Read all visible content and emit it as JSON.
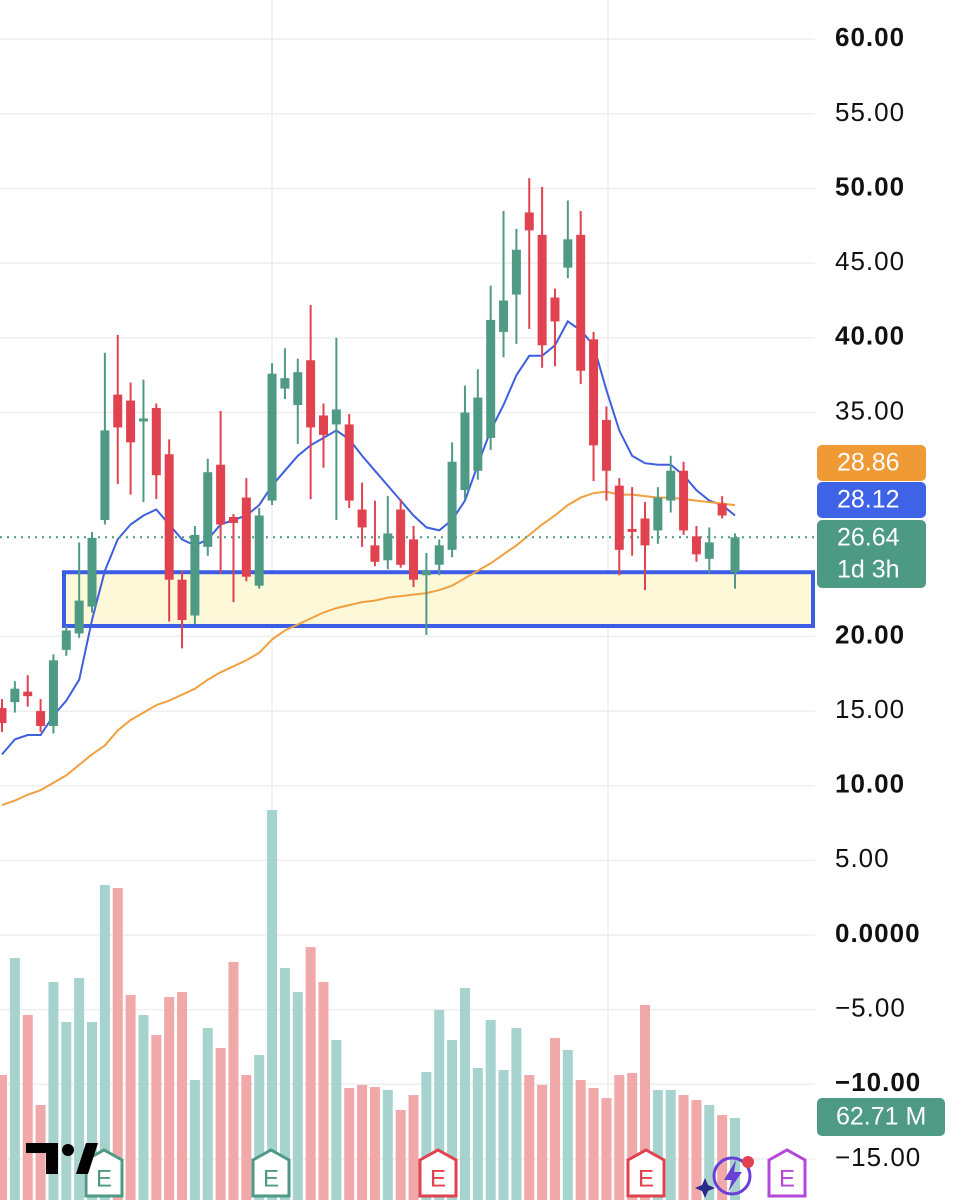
{
  "chart_data": {
    "type": "candlestick",
    "open": [
      15.2,
      15.6,
      16.3,
      15.0,
      14.0,
      19.1,
      20.2,
      22.0,
      27.8,
      36.2,
      35.8,
      34.4,
      35.3,
      32.2,
      23.8,
      21.4,
      26.0,
      31.5,
      28.0,
      29.3,
      23.4,
      29.1,
      36.6,
      35.5,
      38.5,
      34.8,
      34.2,
      34.2,
      28.5,
      26.1,
      25.1,
      28.5,
      26.5,
      24.1,
      24.8,
      25.8,
      29.8,
      31.1,
      33.3,
      40.4,
      42.9,
      48.4,
      46.9,
      42.7,
      44.7,
      46.9,
      39.9,
      34.5,
      30.1,
      27.2,
      27.9,
      27.1,
      29.1,
      31.1,
      26.7,
      25.2,
      28.9,
      24.3
    ],
    "high": [
      15.8,
      17.0,
      17.4,
      15.8,
      18.8,
      20.7,
      26.3,
      27.0,
      39.0,
      40.2,
      37.0,
      37.2,
      35.6,
      33.2,
      24.4,
      27.4,
      31.9,
      35.1,
      28.2,
      30.6,
      28.6,
      38.3,
      39.3,
      38.6,
      42.2,
      35.6,
      40.0,
      34.9,
      30.3,
      29.1,
      29.4,
      29.2,
      27.4,
      25.6,
      26.5,
      33.0,
      36.8,
      37.9,
      43.5,
      48.5,
      47.3,
      50.7,
      50.1,
      43.3,
      49.2,
      48.5,
      40.4,
      35.4,
      30.6,
      30.0,
      29.0,
      30.0,
      32.1,
      31.7,
      27.4,
      27.3,
      29.4,
      26.9
    ],
    "low": [
      13.6,
      14.9,
      15.3,
      13.6,
      13.5,
      18.7,
      19.9,
      21.6,
      27.5,
      30.2,
      29.5,
      29.0,
      29.2,
      21.0,
      19.2,
      20.8,
      25.4,
      24.2,
      22.3,
      23.7,
      23.2,
      28.8,
      35.9,
      32.9,
      29.2,
      31.3,
      27.8,
      28.6,
      26.0,
      24.7,
      24.5,
      24.6,
      23.3,
      20.1,
      24.1,
      25.3,
      29.2,
      30.5,
      32.5,
      38.7,
      39.6,
      40.6,
      38.0,
      38.1,
      44.0,
      36.9,
      30.4,
      29.1,
      24.1,
      25.4,
      23.1,
      26.2,
      28.3,
      26.8,
      25.0,
      24.2,
      27.9,
      23.2
    ],
    "close": [
      14.2,
      16.5,
      16.0,
      14.0,
      18.4,
      20.4,
      22.4,
      26.6,
      33.8,
      34.0,
      33.0,
      34.6,
      30.8,
      23.8,
      21.1,
      26.8,
      31.0,
      27.5,
      27.6,
      24.0,
      28.1,
      37.6,
      37.3,
      37.7,
      34.0,
      33.5,
      35.2,
      29.1,
      27.3,
      25.0,
      26.9,
      24.8,
      23.8,
      24.4,
      26.1,
      31.7,
      35.0,
      36.0,
      41.2,
      42.5,
      45.9,
      47.2,
      39.5,
      41.1,
      46.6,
      37.8,
      32.8,
      31.1,
      25.8,
      27.0,
      26.1,
      29.3,
      31.1,
      27.1,
      25.5,
      26.3,
      28.1,
      26.64
    ],
    "up_color": "#4e9a85",
    "down_color": "#e0424f",
    "series": [
      {
        "color": "#3d5fe0",
        "values": [
          12.1,
          13.1,
          13.4,
          13.4,
          14.7,
          15.7,
          17.1,
          21.1,
          24.4,
          26.5,
          27.5,
          28.1,
          28.5,
          27.5,
          26.5,
          26.1,
          26.5,
          27.5,
          27.8,
          28.1,
          28.8,
          30.1,
          31.1,
          32.1,
          32.8,
          33.3,
          33.8,
          33.2,
          32.1,
          31.1,
          30.1,
          29.1,
          28.1,
          27.3,
          27.1,
          27.8,
          29.1,
          31.5,
          33.8,
          35.5,
          37.5,
          38.8,
          38.8,
          39.5,
          41.1,
          40.5,
          39.5,
          36.5,
          33.8,
          32.1,
          31.6,
          31.5,
          31.5,
          30.8,
          29.8,
          29.1,
          28.8,
          28.1
        ]
      },
      {
        "color": "#f0a040",
        "values": [
          8.7,
          9.0,
          9.4,
          9.7,
          10.2,
          10.7,
          11.4,
          12.1,
          12.7,
          13.7,
          14.4,
          14.9,
          15.4,
          15.7,
          16.1,
          16.5,
          17.1,
          17.6,
          18.0,
          18.4,
          18.9,
          19.8,
          20.4,
          20.8,
          21.2,
          21.6,
          21.9,
          22.1,
          22.3,
          22.4,
          22.6,
          22.7,
          22.8,
          22.9,
          23.1,
          23.4,
          23.9,
          24.4,
          24.9,
          25.5,
          26.1,
          26.8,
          27.5,
          28.1,
          28.8,
          29.3,
          29.6,
          29.7,
          29.5,
          29.5,
          29.4,
          29.3,
          29.3,
          29.2,
          29.1,
          29.0,
          28.9,
          28.8
        ]
      }
    ],
    "volume": {
      "values": [
        95.6,
        185.1,
        141.5,
        72.7,
        166.8,
        136.2,
        169.8,
        136.2,
        241.0,
        238.7,
        156.8,
        141.5,
        126.2,
        155.3,
        159.1,
        91.8,
        131.6,
        116.3,
        182.1,
        95.6,
        110.9,
        298.4,
        177.5,
        159.1,
        193.5,
        166.8,
        122.4,
        85.7,
        88.0,
        86.4,
        84.2,
        68.9,
        80.3,
        97.9,
        145.4,
        122.4,
        162.2,
        101.0,
        137.7,
        99.5,
        131.6,
        95.6,
        88.0,
        123.9,
        114.8,
        91.8,
        85.7,
        78.0,
        95.6,
        97.2,
        149.2,
        84.2,
        84.2,
        80.3,
        76.5,
        72.7,
        65.0,
        62.71
      ],
      "up_color": "#a6d3ce",
      "down_color": "#f0a8a8",
      "last": {
        "value": 62.71,
        "label": "62.71 M"
      }
    },
    "ylim": [
      -17.75,
      62.63
    ],
    "yticks": [
      {
        "value": 60,
        "label": "60.00"
      },
      {
        "value": 55,
        "label": "55.00"
      },
      {
        "value": 50,
        "label": "50.00"
      },
      {
        "value": 45,
        "label": "45.00"
      },
      {
        "value": 40,
        "label": "40.00"
      },
      {
        "value": 35,
        "label": "35.00"
      },
      {
        "value": 20,
        "label": "20.00"
      },
      {
        "value": 15,
        "label": "15.00"
      },
      {
        "value": 10,
        "label": "10.00"
      },
      {
        "value": 5,
        "label": "5.00"
      },
      {
        "value": 0,
        "label": "0.0000"
      },
      {
        "value": -5,
        "label": "−5.00"
      },
      {
        "value": -10,
        "label": "−10.00"
      },
      {
        "value": -15,
        "label": "−15.00"
      }
    ],
    "grid": true,
    "zone": {
      "top": 24.3,
      "bottom": 20.7,
      "color": "#3c5ce6",
      "fill": "#fdf8d8"
    },
    "price_labels": [
      {
        "value": 28.86,
        "color": "#f09a36"
      },
      {
        "value": 28.12,
        "color": "#3f63e6"
      },
      {
        "value": 26.64,
        "color": "#4c9a84",
        "sublabel": "1d 3h"
      }
    ],
    "events": [
      {
        "label": "E",
        "color": "#4e9a85"
      },
      {
        "label": "E",
        "color": "#4e9a85"
      },
      {
        "label": "E",
        "color": "#e0424f"
      },
      {
        "label": "E",
        "color": "#e0424f"
      },
      {
        "label": "E",
        "color": "#b548d8"
      }
    ]
  }
}
